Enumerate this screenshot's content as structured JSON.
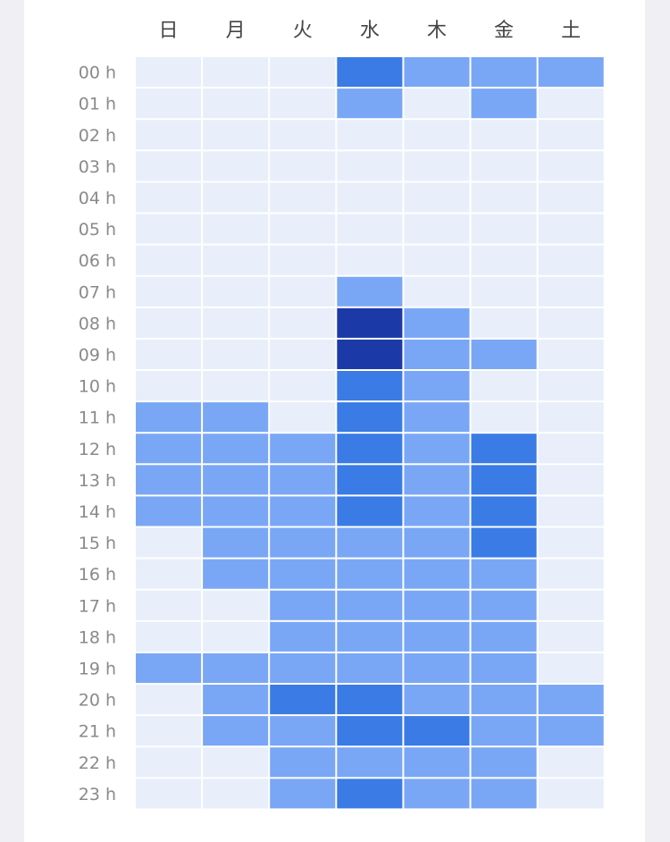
{
  "chart_data": {
    "type": "heatmap",
    "x": [
      "日",
      "月",
      "火",
      "水",
      "木",
      "金",
      "土"
    ],
    "y": [
      "00 h",
      "01 h",
      "02 h",
      "03 h",
      "04 h",
      "05 h",
      "06 h",
      "07 h",
      "08 h",
      "09 h",
      "10 h",
      "11 h",
      "12 h",
      "13 h",
      "14 h",
      "15 h",
      "16 h",
      "17 h",
      "18 h",
      "19 h",
      "20 h",
      "21 h",
      "22 h",
      "23 h"
    ],
    "values": [
      [
        0,
        0,
        0,
        2,
        1,
        1,
        1
      ],
      [
        0,
        0,
        0,
        1,
        0,
        1,
        0
      ],
      [
        0,
        0,
        0,
        0,
        0,
        0,
        0
      ],
      [
        0,
        0,
        0,
        0,
        0,
        0,
        0
      ],
      [
        0,
        0,
        0,
        0,
        0,
        0,
        0
      ],
      [
        0,
        0,
        0,
        0,
        0,
        0,
        0
      ],
      [
        0,
        0,
        0,
        0,
        0,
        0,
        0
      ],
      [
        0,
        0,
        0,
        1,
        0,
        0,
        0
      ],
      [
        0,
        0,
        0,
        3,
        1,
        0,
        0
      ],
      [
        0,
        0,
        0,
        3,
        1,
        1,
        0
      ],
      [
        0,
        0,
        0,
        2,
        1,
        0,
        0
      ],
      [
        1,
        1,
        0,
        2,
        1,
        0,
        0
      ],
      [
        1,
        1,
        1,
        2,
        1,
        2,
        0
      ],
      [
        1,
        1,
        1,
        2,
        1,
        2,
        0
      ],
      [
        1,
        1,
        1,
        2,
        1,
        2,
        0
      ],
      [
        0,
        1,
        1,
        1,
        1,
        2,
        0
      ],
      [
        0,
        1,
        1,
        1,
        1,
        1,
        0
      ],
      [
        0,
        0,
        1,
        1,
        1,
        1,
        0
      ],
      [
        0,
        0,
        1,
        1,
        1,
        1,
        0
      ],
      [
        1,
        1,
        1,
        1,
        1,
        1,
        0
      ],
      [
        0,
        1,
        2,
        2,
        1,
        1,
        1
      ],
      [
        0,
        1,
        1,
        2,
        2,
        1,
        1
      ],
      [
        0,
        0,
        1,
        1,
        1,
        1,
        0
      ],
      [
        0,
        0,
        1,
        2,
        1,
        1,
        0
      ]
    ],
    "color_scale": [
      "#e8effb",
      "#7aa7f5",
      "#3a7be5",
      "#1b3aa8"
    ],
    "legend": false,
    "grid": true
  }
}
